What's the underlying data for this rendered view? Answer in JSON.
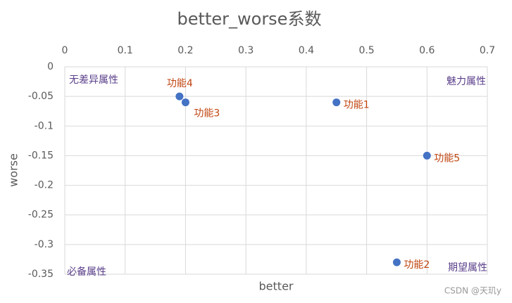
{
  "chart_data": {
    "type": "scatter",
    "title": "better_worse系数",
    "x_label": "better",
    "y_label": "worse",
    "x": [
      0.45,
      0.55,
      0.2,
      0.19,
      0.6
    ],
    "values": [
      -0.06,
      -0.33,
      -0.06,
      -0.05,
      -0.15
    ],
    "labels": [
      "功能1",
      "功能2",
      "功能3",
      "功能4",
      "功能5"
    ],
    "color": "#4472c4",
    "xlim": [
      0,
      0.7
    ],
    "xticks": [
      0,
      0.1,
      0.2,
      0.3,
      0.4,
      0.5,
      0.6,
      0.7
    ],
    "ylim": [
      -0.35,
      0
    ],
    "yticks": [
      0,
      -0.05,
      -0.1,
      -0.15,
      -0.2,
      -0.25,
      -0.3,
      -0.35
    ],
    "grid": true,
    "annotations": [
      "无差异属性",
      "魅力属性",
      "必备属性",
      "期望属性"
    ]
  },
  "watermark": "CSDN @天玑y"
}
